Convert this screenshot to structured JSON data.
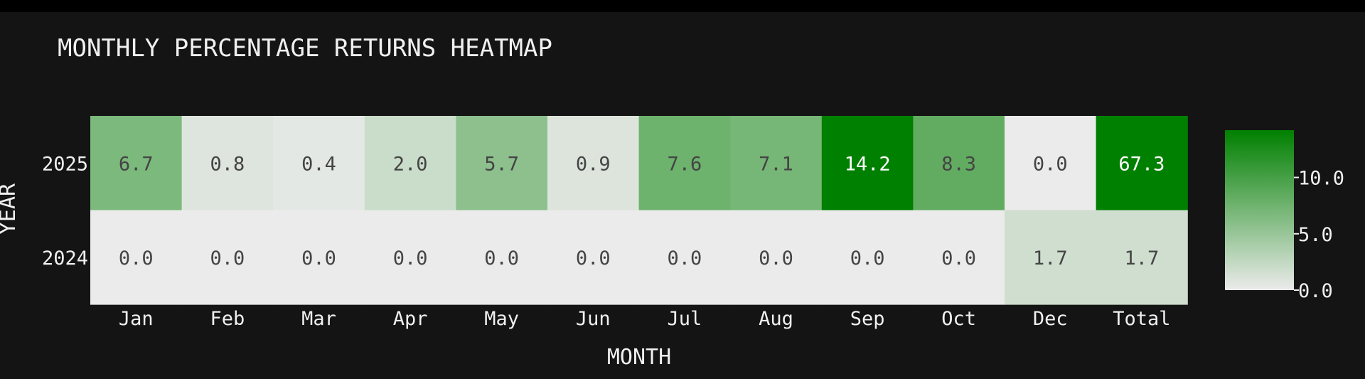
{
  "chart_data": {
    "type": "heatmap",
    "title": "MONTHLY PERCENTAGE RETURNS HEATMAP",
    "xlabel": "MONTH",
    "ylabel": "YEAR",
    "columns": [
      "Jan",
      "Feb",
      "Mar",
      "Apr",
      "May",
      "Jun",
      "Jul",
      "Aug",
      "Sep",
      "Oct",
      "Dec",
      "Total"
    ],
    "rows": [
      "2025",
      "2024"
    ],
    "values": [
      [
        6.7,
        0.8,
        0.4,
        2.0,
        5.7,
        0.9,
        7.6,
        7.1,
        14.2,
        8.3,
        0.0,
        67.3
      ],
      [
        0.0,
        0.0,
        0.0,
        0.0,
        0.0,
        0.0,
        0.0,
        0.0,
        0.0,
        0.0,
        1.7,
        1.7
      ]
    ],
    "value_labels": [
      [
        "6.7",
        "0.8",
        "0.4",
        "2.0",
        "5.7",
        "0.9",
        "7.6",
        "7.1",
        "14.2",
        "8.3",
        "0.0",
        "67.3"
      ],
      [
        "0.0",
        "0.0",
        "0.0",
        "0.0",
        "0.0",
        "0.0",
        "0.0",
        "0.0",
        "0.0",
        "0.0",
        "1.7",
        "1.7"
      ]
    ],
    "color_scale": {
      "min": 0,
      "max": 14.2,
      "low_color": "#ebebeb",
      "high_color": "#008000"
    },
    "colorbar": {
      "ticks": [
        0,
        5,
        10
      ],
      "tick_labels": [
        "0.0",
        "5.0",
        "10.0"
      ],
      "position": "right"
    },
    "colors": {
      "background": "#141414",
      "topbar": "#000000",
      "text": "#f0f0f0",
      "cell_text_dark": "#444444",
      "cell_text_light": "#ffffff"
    }
  }
}
